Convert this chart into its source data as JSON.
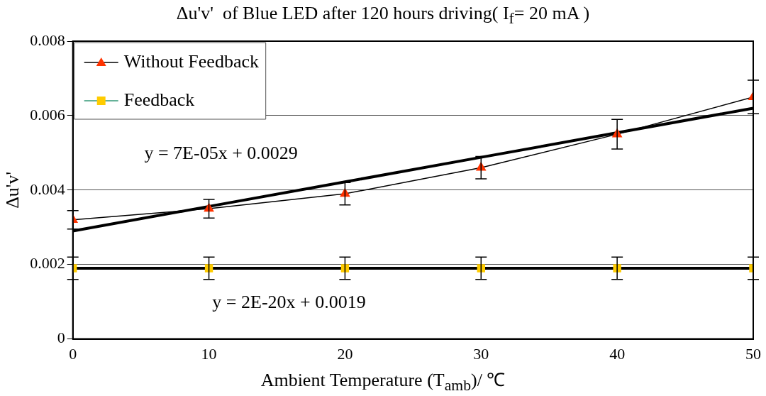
{
  "chart_data": {
    "type": "line",
    "title": "Δu'v'  of Blue LED after 120 hours driving( I$_{f}$= 20 mA )",
    "xlabel": "Ambient Temperature (T$_{amb}$)/ ℃",
    "ylabel": "Δu'v'",
    "x": [
      0,
      10,
      20,
      30,
      40,
      50
    ],
    "xlim": [
      0,
      50
    ],
    "xticks": [
      0,
      10,
      20,
      30,
      40,
      50
    ],
    "ylim": [
      0,
      0.008
    ],
    "yticks": [
      0,
      0.002,
      0.004,
      0.006,
      0.008
    ],
    "series": [
      {
        "name": "Without Feedback",
        "color": "#ff3300",
        "marker": "triangle",
        "values": [
          0.0032,
          0.0035,
          0.0039,
          0.0046,
          0.0055,
          0.0065
        ],
        "errors": [
          0.00025,
          0.00025,
          0.0003,
          0.0003,
          0.0004,
          0.00045
        ]
      },
      {
        "name": "Feedback",
        "type": "scatter",
        "color": "#ffcc00",
        "marker": "square",
        "values": [
          0.0019,
          0.0019,
          0.0019,
          0.0019,
          0.0019,
          0.0019
        ],
        "errors": [
          0.0003,
          0.0003,
          0.0003,
          0.0003,
          0.0003,
          0.0003
        ]
      },
      {
        "type": "line",
        "color": "#000000",
        "marker": "none",
        "values": [
          0.0029,
          0.00356,
          0.00422,
          0.00488,
          0.00554,
          0.0062
        ]
      },
      {
        "type": "line",
        "color": "#000000",
        "marker": "none",
        "values": [
          0.0019,
          0.0019,
          0.0019,
          0.0019,
          0.0019,
          0.0019
        ]
      }
    ],
    "annotations": [
      "y = 7E-05x + 0.0029",
      "y = 2E-20x + 0.0019"
    ],
    "grid": "y",
    "legend": "top left"
  }
}
